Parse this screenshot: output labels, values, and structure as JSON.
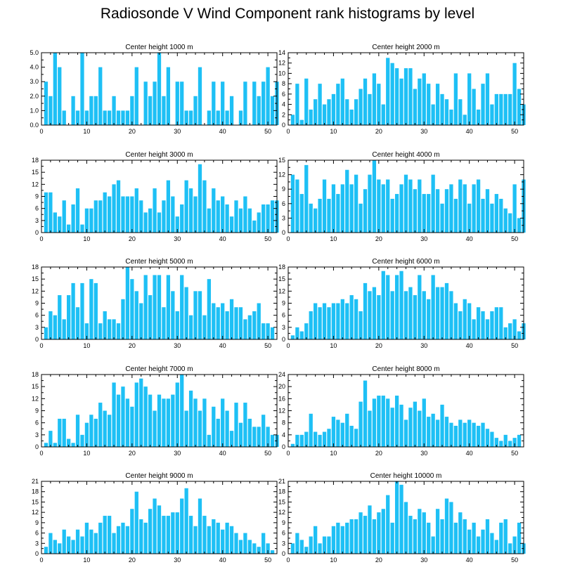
{
  "title": "Radiosonde V Wind Component rank histograms by level",
  "bar_color": "#1ec0f5",
  "chart_data": [
    {
      "type": "bar",
      "title": "Center height 1000 m",
      "xlim": [
        0,
        52
      ],
      "ylim": [
        0,
        5
      ],
      "xticks": [
        0,
        10,
        20,
        30,
        40,
        50
      ],
      "xtick_labels": [
        "0",
        "10",
        "20",
        "30",
        "40",
        "50"
      ],
      "yticks": [
        0,
        1,
        2,
        3,
        4,
        5
      ],
      "ytick_labels": [
        "0.0",
        "1.0",
        "2.0",
        "3.0",
        "4.0",
        "5.0"
      ],
      "values": [
        0,
        3,
        2,
        5,
        4,
        1,
        0,
        2,
        1,
        5,
        1,
        2,
        2,
        4,
        1,
        1,
        2,
        1,
        1,
        1,
        2,
        4,
        0,
        3,
        2,
        3,
        5,
        2,
        4,
        0,
        3,
        3,
        1,
        1,
        2,
        4,
        0,
        1,
        3,
        1,
        3,
        1,
        2,
        0,
        1,
        3,
        0,
        3,
        2,
        3,
        4,
        2,
        3
      ]
    },
    {
      "type": "bar",
      "title": "Center height 2000 m",
      "xlim": [
        0,
        52
      ],
      "ylim": [
        0,
        14
      ],
      "xticks": [
        0,
        10,
        20,
        30,
        40,
        50
      ],
      "xtick_labels": [
        "0",
        "10",
        "20",
        "30",
        "40",
        "50"
      ],
      "yticks": [
        0,
        2,
        4,
        6,
        8,
        10,
        12,
        14
      ],
      "ytick_labels": [
        "0",
        "2",
        "4",
        "6",
        "8",
        "10",
        "12",
        "14"
      ],
      "values": [
        0,
        2,
        8,
        1,
        9,
        3,
        5,
        8,
        4,
        5,
        6,
        8,
        9,
        5,
        3,
        5,
        7,
        9,
        6,
        10,
        8,
        4,
        13,
        12,
        11,
        9,
        11,
        11,
        7,
        9,
        10,
        8,
        4,
        8,
        6,
        5,
        3,
        10,
        5,
        2,
        10,
        7,
        3,
        8,
        10,
        4,
        6,
        6,
        6,
        6,
        12,
        7,
        4
      ]
    },
    {
      "type": "bar",
      "title": "Center height 3000 m",
      "xlim": [
        0,
        52
      ],
      "ylim": [
        0,
        18
      ],
      "xticks": [
        0,
        10,
        20,
        30,
        40,
        50
      ],
      "xtick_labels": [
        "0",
        "10",
        "20",
        "30",
        "40",
        "50"
      ],
      "yticks": [
        0,
        3,
        6,
        9,
        12,
        15,
        18
      ],
      "ytick_labels": [
        "0",
        "3",
        "6",
        "9",
        "12",
        "15",
        "18"
      ],
      "values": [
        0,
        10,
        10,
        5,
        4,
        8,
        2,
        7,
        11,
        2,
        6,
        6,
        8,
        8,
        10,
        9,
        12,
        13,
        9,
        9,
        9,
        11,
        8,
        5,
        6,
        11,
        5,
        8,
        13,
        9,
        4,
        7,
        13,
        11,
        9,
        17,
        13,
        6,
        11,
        8,
        9,
        7,
        4,
        8,
        6,
        9,
        6,
        3,
        5,
        7,
        7,
        8,
        8
      ]
    },
    {
      "type": "bar",
      "title": "Center height 4000 m",
      "xlim": [
        0,
        52
      ],
      "ylim": [
        0,
        15
      ],
      "xticks": [
        0,
        10,
        20,
        30,
        40,
        50
      ],
      "xtick_labels": [
        "0",
        "10",
        "20",
        "30",
        "40",
        "50"
      ],
      "yticks": [
        0,
        3,
        6,
        9,
        12,
        15
      ],
      "ytick_labels": [
        "0",
        "3",
        "6",
        "9",
        "12",
        "15"
      ],
      "values": [
        0,
        12,
        11,
        8,
        14,
        6,
        5,
        7,
        11,
        7,
        10,
        8,
        10,
        13,
        10,
        12,
        6,
        9,
        12,
        15,
        11,
        10,
        11,
        7,
        8,
        10,
        12,
        11,
        9,
        11,
        8,
        8,
        12,
        9,
        6,
        9,
        10,
        7,
        11,
        10,
        6,
        10,
        11,
        7,
        9,
        6,
        8,
        7,
        5,
        4,
        10,
        3,
        11
      ]
    },
    {
      "type": "bar",
      "title": "Center height 5000 m",
      "xlim": [
        0,
        52
      ],
      "ylim": [
        0,
        18
      ],
      "xticks": [
        0,
        10,
        20,
        30,
        40,
        50
      ],
      "xtick_labels": [
        "0",
        "10",
        "20",
        "30",
        "40",
        "50"
      ],
      "yticks": [
        0,
        3,
        6,
        9,
        12,
        15,
        18
      ],
      "ytick_labels": [
        "0",
        "3",
        "6",
        "9",
        "12",
        "15",
        "18"
      ],
      "values": [
        0,
        3,
        7,
        6,
        11,
        5,
        11,
        14,
        8,
        14,
        4,
        15,
        14,
        4,
        7,
        5,
        5,
        4,
        10,
        18,
        15,
        12,
        9,
        16,
        11,
        16,
        16,
        8,
        16,
        12,
        7,
        16,
        13,
        6,
        12,
        12,
        6,
        15,
        9,
        8,
        9,
        7,
        10,
        8,
        8,
        5,
        6,
        7,
        9,
        4,
        4,
        3,
        0
      ]
    },
    {
      "type": "bar",
      "title": "Center height 6000 m",
      "xlim": [
        0,
        52
      ],
      "ylim": [
        0,
        18
      ],
      "xticks": [
        0,
        10,
        20,
        30,
        40,
        50
      ],
      "xtick_labels": [
        "0",
        "10",
        "20",
        "30",
        "40",
        "50"
      ],
      "yticks": [
        0,
        3,
        6,
        9,
        12,
        15,
        18
      ],
      "ytick_labels": [
        "0",
        "3",
        "6",
        "9",
        "12",
        "15",
        "18"
      ],
      "values": [
        0,
        1,
        3,
        2,
        4,
        7,
        9,
        8,
        9,
        8,
        9,
        9,
        10,
        9,
        11,
        10,
        7,
        14,
        12,
        13,
        11,
        17,
        16,
        12,
        16,
        17,
        12,
        13,
        11,
        16,
        12,
        10,
        16,
        13,
        13,
        14,
        12,
        9,
        7,
        10,
        9,
        5,
        8,
        7,
        5,
        7,
        8,
        8,
        3,
        4,
        5,
        2,
        4
      ]
    },
    {
      "type": "bar",
      "title": "Center height 7000 m",
      "xlim": [
        0,
        52
      ],
      "ylim": [
        0,
        18
      ],
      "xticks": [
        0,
        10,
        20,
        30,
        40,
        50
      ],
      "xtick_labels": [
        "0",
        "10",
        "20",
        "30",
        "40",
        "50"
      ],
      "yticks": [
        0,
        3,
        6,
        9,
        12,
        15,
        18
      ],
      "ytick_labels": [
        "0",
        "3",
        "6",
        "9",
        "12",
        "15",
        "18"
      ],
      "values": [
        0,
        1,
        4,
        1,
        7,
        7,
        2,
        1,
        8,
        3,
        6,
        8,
        7,
        11,
        9,
        8,
        16,
        13,
        15,
        12,
        10,
        16,
        17,
        15,
        13,
        9,
        13,
        12,
        12,
        13,
        16,
        18,
        9,
        14,
        12,
        9,
        12,
        3,
        10,
        7,
        12,
        9,
        4,
        11,
        6,
        11,
        7,
        5,
        5,
        8,
        5,
        3,
        3
      ]
    },
    {
      "type": "bar",
      "title": "Center height 8000 m",
      "xlim": [
        0,
        52
      ],
      "ylim": [
        0,
        24
      ],
      "xticks": [
        0,
        10,
        20,
        30,
        40,
        50
      ],
      "xtick_labels": [
        "0",
        "10",
        "20",
        "30",
        "40",
        "50"
      ],
      "yticks": [
        0,
        4,
        8,
        12,
        16,
        20,
        24
      ],
      "ytick_labels": [
        "0",
        "4",
        "8",
        "12",
        "16",
        "20",
        "24"
      ],
      "values": [
        0,
        1,
        4,
        4,
        5,
        11,
        5,
        4,
        5,
        6,
        10,
        9,
        8,
        11,
        7,
        6,
        15,
        22,
        12,
        16,
        17,
        17,
        16,
        13,
        17,
        14,
        9,
        13,
        15,
        12,
        16,
        10,
        11,
        9,
        14,
        10,
        8,
        7,
        9,
        8,
        9,
        8,
        7,
        8,
        6,
        5,
        3,
        2,
        4,
        2,
        3,
        4,
        0
      ]
    },
    {
      "type": "bar",
      "title": "Center height 9000 m",
      "xlim": [
        0,
        52
      ],
      "ylim": [
        0,
        21
      ],
      "xticks": [
        0,
        10,
        20,
        30,
        40,
        50
      ],
      "xtick_labels": [
        "0",
        "10",
        "20",
        "30",
        "40",
        "50"
      ],
      "yticks": [
        0,
        3,
        6,
        9,
        12,
        15,
        18,
        21
      ],
      "ytick_labels": [
        "0",
        "3",
        "6",
        "9",
        "12",
        "15",
        "18",
        "21"
      ],
      "values": [
        0,
        2,
        6,
        4,
        3,
        7,
        5,
        4,
        7,
        5,
        9,
        7,
        6,
        9,
        11,
        11,
        6,
        8,
        9,
        8,
        13,
        18,
        10,
        9,
        13,
        16,
        14,
        11,
        11,
        12,
        12,
        16,
        19,
        11,
        8,
        16,
        11,
        8,
        10,
        9,
        7,
        9,
        8,
        6,
        4,
        6,
        4,
        3,
        2,
        6,
        3,
        1,
        0
      ]
    },
    {
      "type": "bar",
      "title": "Center height 10000 m",
      "xlim": [
        0,
        52
      ],
      "ylim": [
        0,
        21
      ],
      "xticks": [
        0,
        10,
        20,
        30,
        40,
        50
      ],
      "xtick_labels": [
        "0",
        "10",
        "20",
        "30",
        "40",
        "50"
      ],
      "yticks": [
        0,
        3,
        6,
        9,
        12,
        15,
        18,
        21
      ],
      "ytick_labels": [
        "0",
        "3",
        "6",
        "9",
        "12",
        "15",
        "18",
        "21"
      ],
      "values": [
        0,
        3,
        6,
        4,
        2,
        5,
        8,
        3,
        5,
        5,
        8,
        9,
        8,
        9,
        10,
        10,
        12,
        11,
        14,
        10,
        12,
        13,
        17,
        9,
        21,
        20,
        15,
        11,
        10,
        13,
        12,
        9,
        5,
        13,
        10,
        16,
        15,
        9,
        12,
        10,
        7,
        9,
        5,
        7,
        10,
        6,
        4,
        9,
        10,
        3,
        5,
        9,
        3
      ]
    }
  ]
}
